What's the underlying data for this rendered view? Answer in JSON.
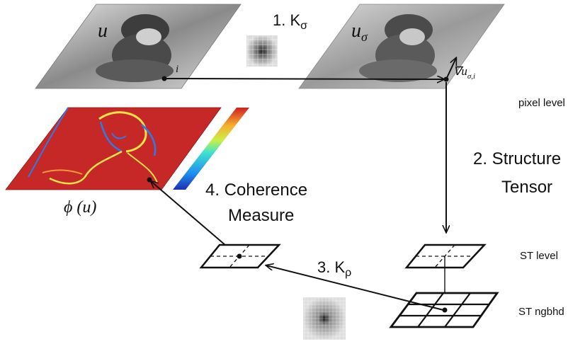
{
  "images": {
    "u": {
      "label": "u",
      "pixel_label": "i"
    },
    "u_sigma": {
      "label_base": "u",
      "label_sub": "σ",
      "gradient_label": "∇u",
      "gradient_sub": "σ,i"
    },
    "phi": {
      "label": "ϕ (u)"
    }
  },
  "steps": {
    "step1": {
      "text": "1. K",
      "sub": "σ"
    },
    "step2": {
      "line1": "2. Structure",
      "line2": "Tensor"
    },
    "step3": {
      "text": "3. K",
      "sub": "ρ"
    },
    "step4": {
      "line1": "4. Coherence",
      "line2": "Measure"
    }
  },
  "levels": {
    "pixel": "pixel level",
    "st": "ST level",
    "ngbhd": "ST ngbhd"
  },
  "colors": {
    "heatmap_bg": "#c62828",
    "edge_yellow": "#f5e14a",
    "edge_blue": "#2e7be8",
    "photo_dark": "#3a3a3a",
    "photo_light": "#d9d9d9"
  }
}
